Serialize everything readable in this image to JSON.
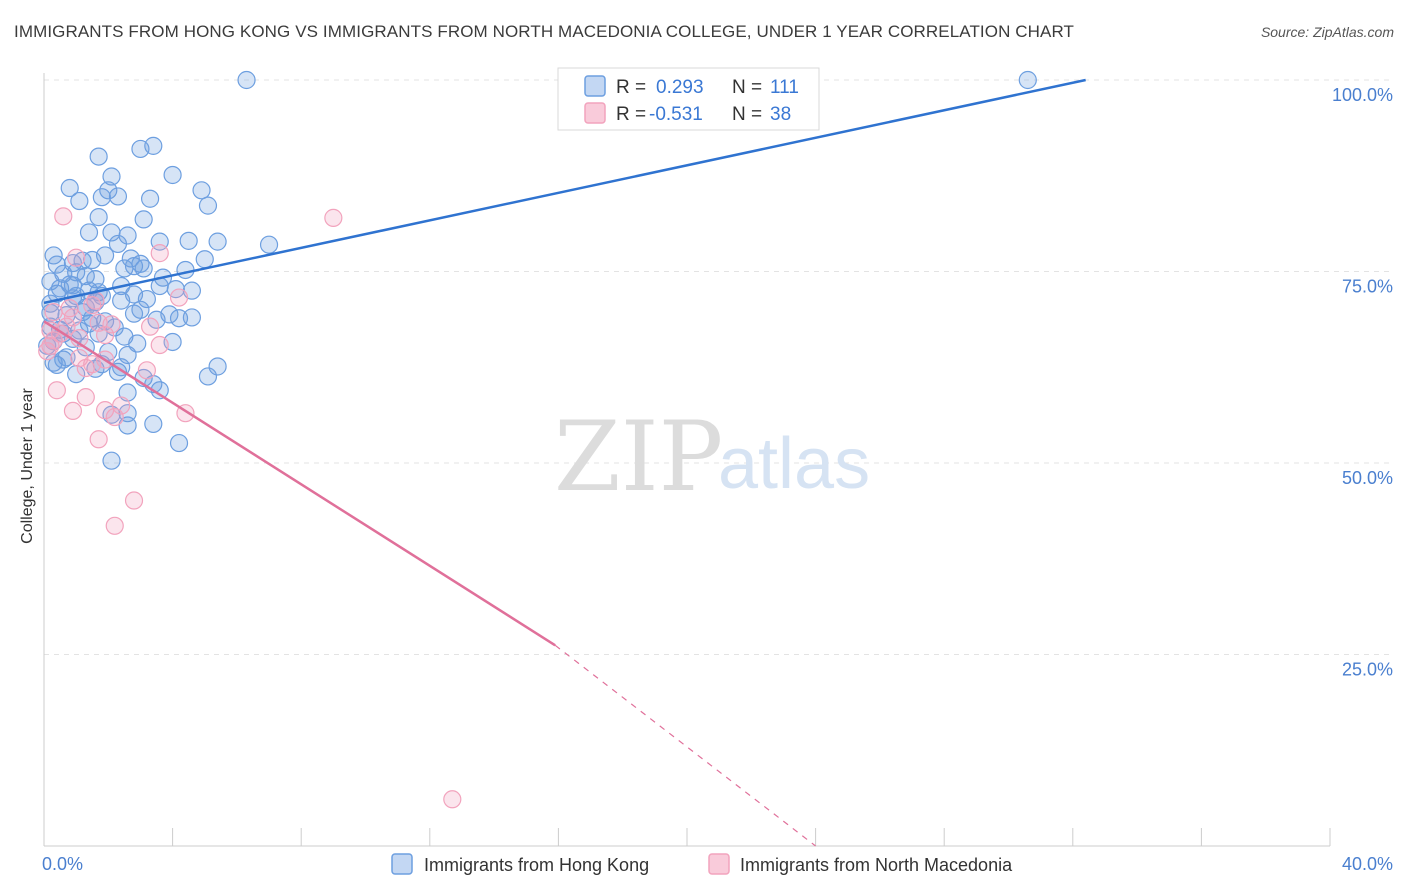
{
  "title": "IMMIGRANTS FROM HONG KONG VS IMMIGRANTS FROM NORTH MACEDONIA COLLEGE, UNDER 1 YEAR CORRELATION CHART",
  "source": "Source: ZipAtlas.com",
  "watermark": {
    "zip": "ZIP",
    "atlas": "atlas"
  },
  "legend": {
    "r_label": "R =",
    "n_label": "N =",
    "rows": [
      {
        "r": "0.293",
        "n": "111"
      },
      {
        "r": "-0.531",
        "n": "38"
      }
    ]
  },
  "chart_data": {
    "type": "scatter",
    "title": "IMMIGRANTS FROM HONG KONG VS IMMIGRANTS FROM NORTH MACEDONIA COLLEGE, UNDER 1 YEAR CORRELATION CHART",
    "xlabel": "",
    "ylabel": "College, Under 1 year",
    "xlim": [
      0,
      40
    ],
    "ylim": [
      0,
      100
    ],
    "x_tick_labels": [
      "0.0%",
      "40.0%"
    ],
    "y_ticks": [
      25,
      50,
      75,
      100
    ],
    "y_tick_labels": [
      "25.0%",
      "50.0%",
      "75.0%",
      "100.0%"
    ],
    "grid": "horizontal dashed",
    "legend_position": "top-center",
    "colors": {
      "hong_kong": "#6d9fe0",
      "hong_kong_line": "#2f73d0",
      "north_macedonia": "#f2a3bd",
      "north_macedonia_line": "#e0709a",
      "tick_text": "#4a7fcf"
    },
    "series": [
      {
        "name": "Immigrants from Hong Kong",
        "r": 0.293,
        "n": 111,
        "trend": {
          "x": [
            0,
            32.4
          ],
          "y": [
            70.9,
            100
          ]
        },
        "points": [
          [
            6.3,
            100
          ],
          [
            30.6,
            100
          ],
          [
            3.4,
            91.4
          ],
          [
            3.0,
            91.0
          ],
          [
            1.7,
            90.0
          ],
          [
            4.0,
            87.6
          ],
          [
            2.1,
            87.4
          ],
          [
            0.8,
            85.9
          ],
          [
            2.0,
            85.6
          ],
          [
            4.9,
            85.6
          ],
          [
            2.3,
            84.8
          ],
          [
            1.8,
            84.7
          ],
          [
            3.3,
            84.5
          ],
          [
            1.1,
            84.2
          ],
          [
            5.1,
            83.6
          ],
          [
            1.7,
            82.1
          ],
          [
            3.1,
            81.8
          ],
          [
            2.1,
            80.1
          ],
          [
            1.4,
            80.1
          ],
          [
            2.6,
            79.7
          ],
          [
            7.0,
            78.5
          ],
          [
            5.4,
            78.9
          ],
          [
            4.5,
            79.0
          ],
          [
            3.6,
            78.9
          ],
          [
            2.3,
            78.6
          ],
          [
            0.3,
            77.1
          ],
          [
            1.9,
            77.1
          ],
          [
            2.7,
            76.7
          ],
          [
            5.0,
            76.6
          ],
          [
            1.5,
            76.5
          ],
          [
            0.4,
            75.9
          ],
          [
            0.9,
            76.1
          ],
          [
            2.8,
            75.7
          ],
          [
            3.1,
            75.4
          ],
          [
            2.5,
            75.4
          ],
          [
            4.4,
            75.2
          ],
          [
            1.0,
            74.9
          ],
          [
            0.6,
            74.7
          ],
          [
            1.3,
            74.4
          ],
          [
            3.7,
            74.2
          ],
          [
            1.6,
            74.0
          ],
          [
            0.2,
            73.7
          ],
          [
            0.8,
            73.3
          ],
          [
            2.4,
            73.1
          ],
          [
            4.1,
            72.7
          ],
          [
            4.6,
            72.5
          ],
          [
            1.4,
            72.5
          ],
          [
            0.4,
            72.1
          ],
          [
            1.8,
            71.8
          ],
          [
            0.9,
            71.5
          ],
          [
            3.2,
            71.4
          ],
          [
            2.4,
            71.2
          ],
          [
            1.6,
            71.0
          ],
          [
            0.2,
            70.8
          ],
          [
            3.0,
            70.0
          ],
          [
            1.2,
            69.7
          ],
          [
            2.8,
            69.5
          ],
          [
            0.7,
            69.3
          ],
          [
            4.2,
            68.9
          ],
          [
            3.5,
            68.7
          ],
          [
            1.9,
            68.5
          ],
          [
            1.4,
            68.2
          ],
          [
            0.2,
            67.8
          ],
          [
            2.2,
            67.7
          ],
          [
            0.5,
            67.4
          ],
          [
            1.7,
            66.9
          ],
          [
            2.5,
            66.5
          ],
          [
            0.9,
            66.2
          ],
          [
            0.3,
            65.9
          ],
          [
            4.0,
            65.8
          ],
          [
            2.9,
            65.6
          ],
          [
            0.1,
            65.3
          ],
          [
            1.3,
            65.1
          ],
          [
            2.6,
            64.1
          ],
          [
            0.6,
            63.5
          ],
          [
            0.3,
            63.1
          ],
          [
            1.8,
            62.9
          ],
          [
            5.4,
            62.6
          ],
          [
            1.6,
            62.3
          ],
          [
            2.3,
            61.9
          ],
          [
            1.0,
            61.6
          ],
          [
            5.1,
            61.3
          ],
          [
            3.1,
            61.1
          ],
          [
            3.4,
            60.3
          ],
          [
            2.6,
            59.2
          ],
          [
            3.6,
            59.5
          ],
          [
            2.6,
            56.5
          ],
          [
            2.1,
            56.3
          ],
          [
            3.4,
            55.1
          ],
          [
            2.6,
            54.9
          ],
          [
            4.2,
            52.6
          ],
          [
            2.1,
            50.3
          ],
          [
            0.4,
            62.8
          ],
          [
            0.9,
            73.2
          ],
          [
            1.0,
            71.8
          ],
          [
            1.7,
            72.3
          ],
          [
            3.6,
            73.1
          ],
          [
            2.8,
            72.0
          ],
          [
            2.0,
            64.5
          ],
          [
            3.9,
            69.4
          ],
          [
            0.7,
            63.8
          ],
          [
            4.6,
            69.0
          ],
          [
            1.1,
            67.3
          ],
          [
            0.5,
            72.8
          ],
          [
            1.3,
            70.3
          ],
          [
            2.4,
            62.5
          ],
          [
            1.5,
            68.9
          ],
          [
            0.2,
            69.6
          ],
          [
            3.0,
            76.0
          ],
          [
            1.2,
            76.4
          ],
          [
            0.6,
            66.9
          ]
        ]
      },
      {
        "name": "Immigrants from North Macedonia",
        "r": -0.531,
        "n": 38,
        "trend": {
          "x": [
            0,
            15.9
          ],
          "y": [
            68.5,
            26.2
          ]
        },
        "trend_dashed": {
          "x": [
            15.9,
            24.0
          ],
          "y": [
            26.2,
            0
          ]
        },
        "points": [
          [
            9.0,
            82.0
          ],
          [
            0.6,
            82.2
          ],
          [
            3.6,
            77.4
          ],
          [
            1.0,
            76.8
          ],
          [
            4.2,
            71.6
          ],
          [
            1.6,
            71.2
          ],
          [
            0.8,
            70.2
          ],
          [
            0.3,
            69.7
          ],
          [
            0.9,
            69.0
          ],
          [
            3.3,
            67.8
          ],
          [
            1.7,
            68.3
          ],
          [
            2.1,
            68.1
          ],
          [
            0.2,
            67.3
          ],
          [
            0.5,
            66.9
          ],
          [
            1.9,
            66.7
          ],
          [
            1.1,
            66.3
          ],
          [
            3.6,
            65.4
          ],
          [
            0.2,
            65.3
          ],
          [
            0.1,
            64.6
          ],
          [
            1.9,
            63.5
          ],
          [
            1.1,
            63.7
          ],
          [
            1.5,
            62.9
          ],
          [
            1.3,
            62.4
          ],
          [
            3.2,
            62.1
          ],
          [
            0.4,
            59.5
          ],
          [
            1.3,
            58.6
          ],
          [
            2.4,
            57.5
          ],
          [
            1.9,
            56.9
          ],
          [
            0.9,
            56.8
          ],
          [
            4.4,
            56.5
          ],
          [
            2.2,
            56.0
          ],
          [
            1.7,
            53.1
          ],
          [
            2.8,
            45.1
          ],
          [
            2.2,
            41.8
          ],
          [
            12.7,
            6.1
          ],
          [
            0.7,
            67.8
          ],
          [
            1.5,
            70.6
          ],
          [
            0.3,
            66.0
          ]
        ]
      }
    ]
  },
  "bottom_legend": [
    {
      "label": "Immigrants from Hong Kong"
    },
    {
      "label": "Immigrants from North Macedonia"
    }
  ]
}
